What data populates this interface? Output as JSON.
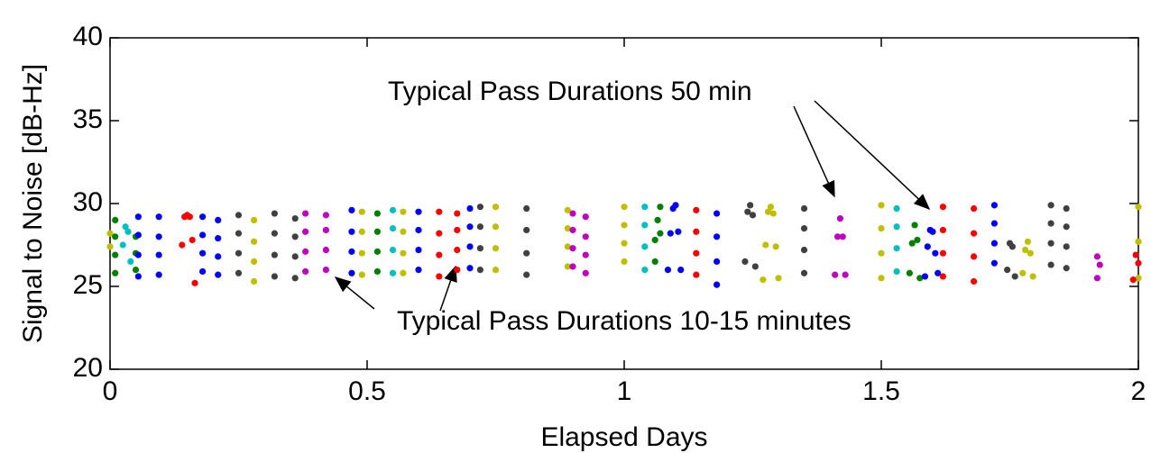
{
  "chart_data": {
    "type": "scatter",
    "x_label": "Elapsed Days",
    "y_label": "Signal to Noise [dB-Hz]",
    "xlim": [
      0,
      2
    ],
    "xticks": [
      0,
      0.5,
      1,
      1.5,
      2
    ],
    "ylim": [
      20,
      40
    ],
    "yticks": [
      20,
      25,
      30,
      35,
      40
    ],
    "grid": false,
    "annotations": [
      "Typical Pass Durations 50 min",
      "Typical Pass Durations 10-15 minutes"
    ],
    "series": [
      {
        "color": "#bfbf00",
        "x": [
          0,
          0,
          0.28,
          0.28,
          0.28,
          0.28,
          0.49,
          0.49,
          0.49,
          0.49,
          0.57,
          0.57,
          0.57,
          0.57,
          0.75,
          0.75,
          0.75,
          0.75,
          0.89,
          0.89,
          0.89,
          0.89,
          1.0,
          1.0,
          1.0,
          1.0,
          1.27,
          1.275,
          1.28,
          1.285,
          1.29,
          1.295,
          1.3,
          1.5,
          1.5,
          1.5,
          1.5,
          1.775,
          1.78,
          1.785,
          1.79,
          1.795,
          2.0,
          2.0,
          2.0
        ],
        "values": [
          28.2,
          27.4,
          25.3,
          26.5,
          27.7,
          29.0,
          25.7,
          27.0,
          28.3,
          29.5,
          25.8,
          27.0,
          28.3,
          29.5,
          26.0,
          27.3,
          28.6,
          29.8,
          26.2,
          27.4,
          28.5,
          29.6,
          26.5,
          27.6,
          28.7,
          29.8,
          25.4,
          27.5,
          29.5,
          29.8,
          29.4,
          27.4,
          25.5,
          25.5,
          27.0,
          28.5,
          29.9,
          25.8,
          27.2,
          27.7,
          27.0,
          25.6,
          25.5,
          27.7,
          29.8
        ]
      },
      {
        "color": "#00bfbf",
        "x": [
          0.025,
          0.03,
          0.035,
          0.04,
          0.55,
          0.55,
          0.55,
          0.55,
          1.04,
          1.04,
          1.04,
          1.04,
          1.53,
          1.53,
          1.53,
          1.53
        ],
        "values": [
          27.5,
          28.6,
          28.3,
          26.5,
          25.8,
          27.2,
          28.5,
          29.6,
          26.0,
          27.4,
          28.7,
          29.8,
          25.9,
          27.3,
          28.6,
          29.7
        ]
      },
      {
        "color": "#008000",
        "x": [
          0.01,
          0.01,
          0.01,
          0.01,
          0.05,
          0.05,
          0.05,
          0.52,
          0.52,
          0.52,
          0.52,
          1.06,
          1.06,
          1.065,
          1.07,
          1.07,
          1.555,
          1.56,
          1.565,
          1.57,
          1.575
        ],
        "values": [
          25.8,
          26.9,
          28.0,
          29.0,
          26.0,
          27.0,
          28.0,
          25.9,
          27.1,
          28.3,
          29.4,
          26.5,
          27.8,
          29.0,
          29.8,
          28.2,
          25.8,
          27.6,
          28.7,
          27.8,
          25.5
        ]
      },
      {
        "color": "#0000ff",
        "x": [
          0.055,
          0.055,
          0.055,
          0.055,
          0.095,
          0.095,
          0.095,
          0.095,
          0.18,
          0.18,
          0.18,
          0.18,
          0.21,
          0.21,
          0.21,
          0.21,
          0.47,
          0.47,
          0.47,
          0.47,
          0.6,
          0.6,
          0.6,
          0.6,
          0.7,
          0.7,
          0.7,
          0.7,
          1.085,
          1.09,
          1.095,
          1.1,
          1.105,
          1.11,
          1.18,
          1.18,
          1.18,
          1.18,
          1.585,
          1.59,
          1.595,
          1.6,
          1.605,
          1.61,
          1.72,
          1.72,
          1.72,
          1.72
        ],
        "values": [
          25.6,
          26.9,
          28.1,
          29.2,
          25.7,
          26.9,
          28.0,
          29.2,
          25.9,
          27.0,
          28.1,
          29.2,
          25.7,
          26.8,
          27.9,
          29.0,
          25.8,
          27.1,
          28.3,
          29.6,
          26.0,
          27.2,
          28.4,
          29.5,
          26.1,
          27.4,
          28.6,
          29.7,
          26.0,
          28.2,
          29.7,
          29.9,
          28.3,
          26.0,
          25.1,
          26.5,
          28.0,
          29.4,
          25.6,
          27.4,
          28.4,
          28.3,
          27.0,
          25.8,
          26.4,
          27.6,
          28.8,
          29.9
        ]
      },
      {
        "color": "#ff0000",
        "x": [
          0.14,
          0.145,
          0.15,
          0.155,
          0.16,
          0.165,
          0.64,
          0.64,
          0.64,
          0.64,
          0.675,
          0.675,
          0.675,
          0.675,
          1.14,
          1.14,
          1.14,
          1.14,
          1.62,
          1.62,
          1.62,
          1.62,
          1.68,
          1.68,
          1.68,
          1.68,
          1.99,
          1.995,
          2.0
        ],
        "values": [
          27.5,
          29.2,
          29.3,
          29.2,
          27.8,
          25.2,
          25.6,
          26.9,
          28.2,
          29.5,
          26.0,
          27.2,
          28.4,
          29.4,
          25.7,
          27.0,
          28.3,
          29.6,
          25.6,
          27.0,
          28.4,
          29.8,
          25.3,
          26.8,
          28.2,
          29.7,
          25.4,
          26.9,
          26.4
        ]
      },
      {
        "color": "#bf00bf",
        "x": [
          0.38,
          0.38,
          0.38,
          0.38,
          0.42,
          0.42,
          0.42,
          0.42,
          0.9,
          0.9,
          0.9,
          0.9,
          0.925,
          0.925,
          0.925,
          0.925,
          1.41,
          1.415,
          1.42,
          1.425,
          1.43,
          1.92,
          1.92,
          1.925
        ],
        "values": [
          25.9,
          27.1,
          28.3,
          29.4,
          26.0,
          27.2,
          28.4,
          29.3,
          26.2,
          27.3,
          28.4,
          29.4,
          25.8,
          26.9,
          28.0,
          29.2,
          25.7,
          28.0,
          29.1,
          28.0,
          25.7,
          25.5,
          26.8,
          26.3
        ]
      },
      {
        "color": "#404040",
        "x": [
          0.25,
          0.25,
          0.25,
          0.25,
          0.32,
          0.32,
          0.32,
          0.32,
          0.36,
          0.36,
          0.36,
          0.36,
          0.72,
          0.72,
          0.72,
          0.72,
          0.81,
          0.81,
          0.81,
          0.81,
          1.235,
          1.24,
          1.245,
          1.25,
          1.255,
          1.35,
          1.35,
          1.35,
          1.35,
          1.745,
          1.75,
          1.755,
          1.76,
          1.83,
          1.83,
          1.83,
          1.83,
          1.86,
          1.86,
          1.86,
          1.86
        ],
        "values": [
          25.8,
          27.0,
          28.2,
          29.3,
          25.6,
          26.9,
          28.2,
          29.4,
          25.5,
          26.8,
          28.0,
          29.1,
          26.0,
          27.3,
          28.6,
          29.8,
          25.7,
          27.0,
          28.4,
          29.7,
          26.5,
          29.5,
          29.9,
          29.3,
          26.2,
          25.8,
          27.2,
          28.5,
          29.7,
          26.0,
          27.6,
          27.4,
          25.6,
          26.3,
          27.6,
          28.8,
          29.9,
          26.1,
          27.4,
          28.6,
          29.7
        ]
      }
    ]
  }
}
